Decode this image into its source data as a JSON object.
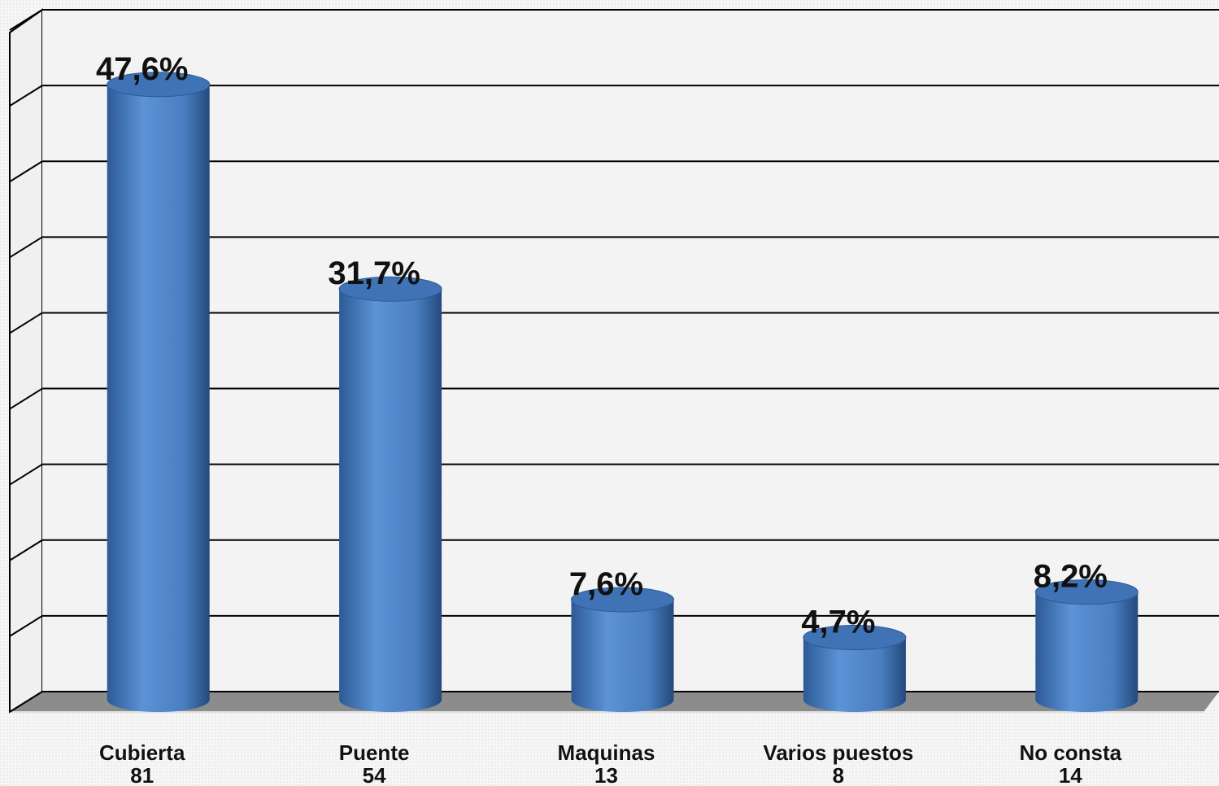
{
  "chart_data": {
    "type": "cylinder",
    "categories": [
      "Cubierta",
      "Puente",
      "Maquinas",
      "Varios puestos",
      "No consta"
    ],
    "values": [
      81,
      54,
      13,
      8,
      14
    ],
    "percent_labels": [
      "47,6%",
      "31,7%",
      "7,6%",
      "4,7%",
      "8,2%"
    ],
    "color": "#4a7fc1",
    "ylim": [
      0,
      90
    ],
    "yticks": [
      0,
      10,
      20,
      30,
      40,
      50,
      60,
      70,
      80,
      90
    ],
    "grid": true
  }
}
